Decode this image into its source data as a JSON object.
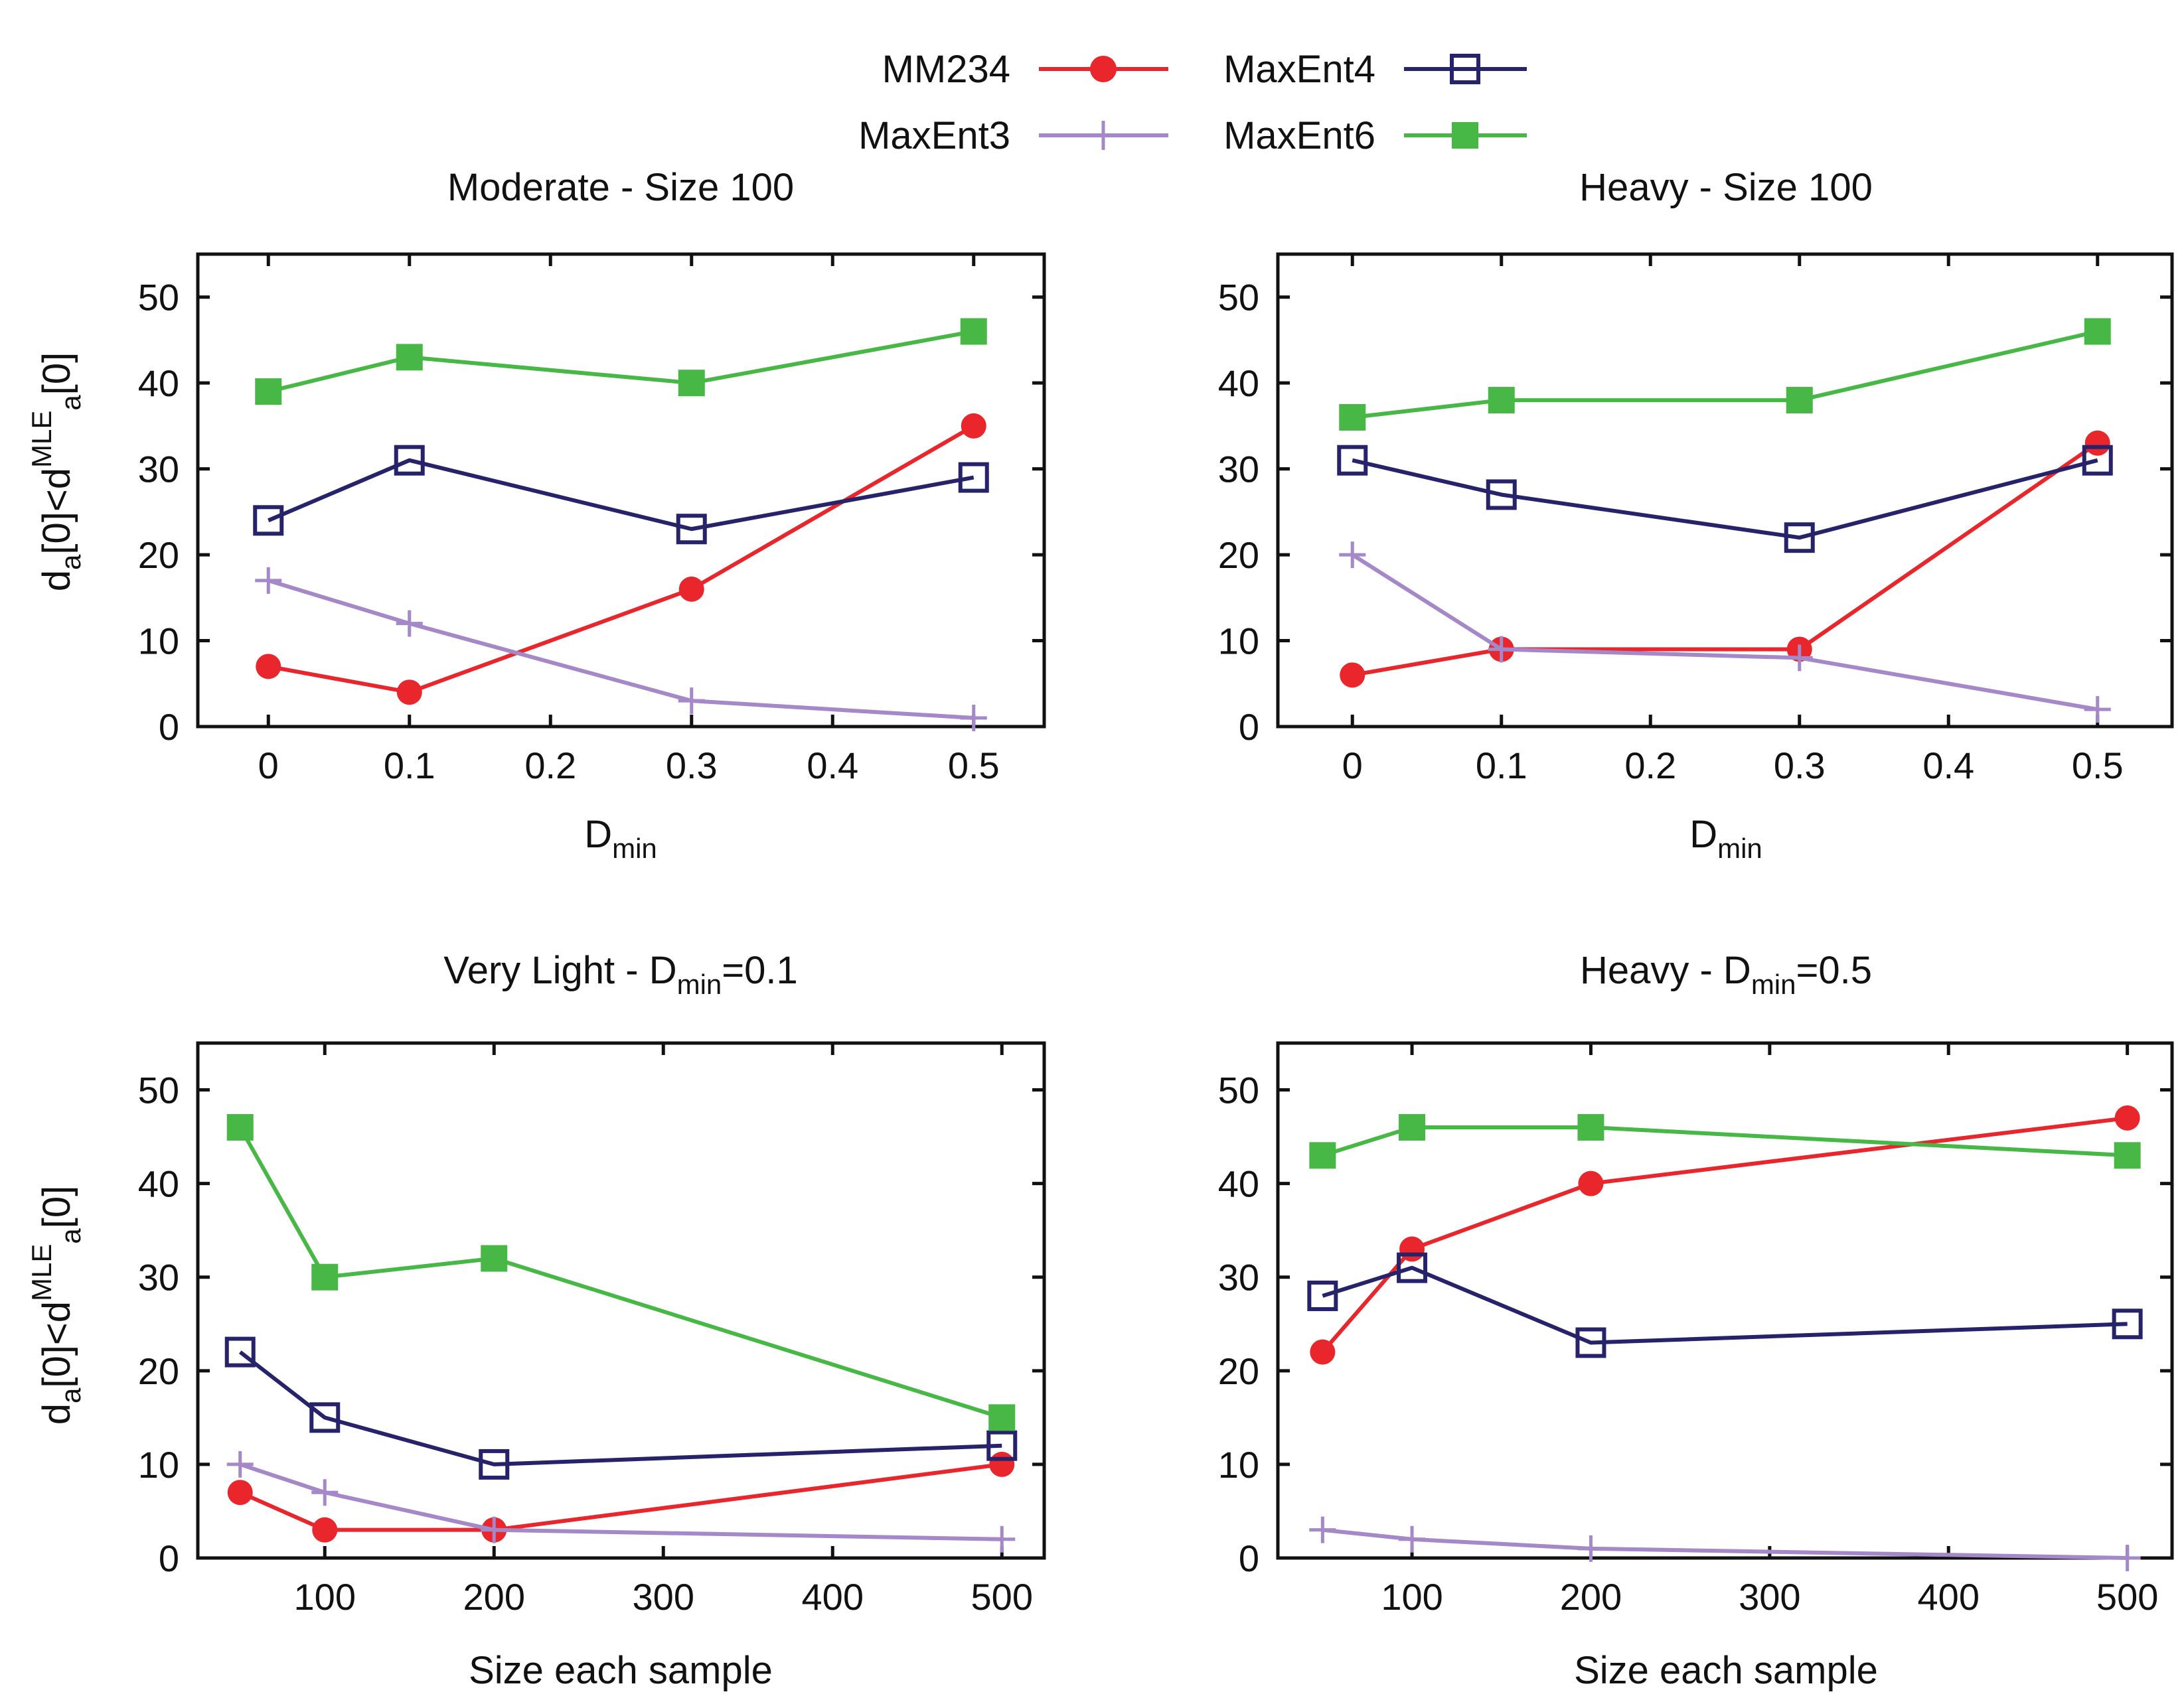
{
  "colors": {
    "MM234": "#e8262c",
    "MaxEnt3": "#a488c8",
    "MaxEnt4": "#26236b",
    "MaxEnt6": "#47b845"
  },
  "legend": {
    "entries": [
      {
        "label": "MM234",
        "marker": "filled-circle-icon"
      },
      {
        "label": "MaxEnt4",
        "marker": "open-square-icon"
      },
      {
        "label": "MaxEnt3",
        "marker": "plus-icon"
      },
      {
        "label": "MaxEnt6",
        "marker": "filled-square-icon"
      }
    ]
  },
  "chart_data": [
    {
      "type": "line",
      "title": "Moderate - Size 100",
      "title_main": "Moderate - Size 100",
      "xlabel": "Dmin",
      "xlabel_main": "D",
      "xlabel_sub": "min",
      "ylabel": "da[0]<dMLEa[0]",
      "ylabel_parts": {
        "a": "d",
        "b": "a",
        "c": "[0]<d",
        "d": "MLE",
        "e": "a",
        "f": "[0]"
      },
      "xlim": [
        -0.05,
        0.55
      ],
      "ylim": [
        0,
        55
      ],
      "xticks": [
        0,
        0.1,
        0.2,
        0.3,
        0.4,
        0.5
      ],
      "xtick_labels": [
        "0",
        "0.1",
        "0.2",
        "0.3",
        "0.4",
        "0.5"
      ],
      "yticks": [
        0,
        10,
        20,
        30,
        40,
        50
      ],
      "ytick_labels": [
        "0",
        "10",
        "20",
        "30",
        "40",
        "50"
      ],
      "x": [
        0,
        0.1,
        0.3,
        0.5
      ],
      "series": [
        {
          "name": "MM234",
          "values": [
            7,
            4,
            16,
            35
          ]
        },
        {
          "name": "MaxEnt3",
          "values": [
            17,
            12,
            3,
            1
          ]
        },
        {
          "name": "MaxEnt4",
          "values": [
            24,
            31,
            23,
            29
          ]
        },
        {
          "name": "MaxEnt6",
          "values": [
            39,
            43,
            40,
            46
          ]
        }
      ]
    },
    {
      "type": "line",
      "title": "Heavy - Size 100",
      "title_main": "Heavy - Size 100",
      "xlabel": "Dmin",
      "xlabel_main": "D",
      "xlabel_sub": "min",
      "ylabel": "",
      "xlim": [
        -0.05,
        0.55
      ],
      "ylim": [
        0,
        55
      ],
      "xticks": [
        0,
        0.1,
        0.2,
        0.3,
        0.4,
        0.5
      ],
      "xtick_labels": [
        "0",
        "0.1",
        "0.2",
        "0.3",
        "0.4",
        "0.5"
      ],
      "yticks": [
        0,
        10,
        20,
        30,
        40,
        50
      ],
      "ytick_labels": [
        "0",
        "10",
        "20",
        "30",
        "40",
        "50"
      ],
      "x": [
        0,
        0.1,
        0.3,
        0.5
      ],
      "series": [
        {
          "name": "MM234",
          "values": [
            6,
            9,
            9,
            33
          ]
        },
        {
          "name": "MaxEnt3",
          "values": [
            20,
            9,
            8,
            2
          ]
        },
        {
          "name": "MaxEnt4",
          "values": [
            31,
            27,
            22,
            31
          ]
        },
        {
          "name": "MaxEnt6",
          "values": [
            36,
            38,
            38,
            46
          ]
        }
      ]
    },
    {
      "type": "line",
      "title": "Very Light - Dmin=0.1",
      "title_main": "Very Light - D",
      "title_sub": "min",
      "title_tail": "=0.1",
      "xlabel": "Size each sample",
      "ylabel": "da[0]<dMLEa[0]",
      "ylabel_parts": {
        "a": "d",
        "b": "a",
        "c": "[0]<d",
        "d": "MLE",
        "e": "a",
        "f": "[0]"
      },
      "xlim": [
        25,
        525
      ],
      "ylim": [
        0,
        55
      ],
      "xticks": [
        100,
        200,
        300,
        400,
        500
      ],
      "xtick_labels": [
        "100",
        "200",
        "300",
        "400",
        "500"
      ],
      "yticks": [
        0,
        10,
        20,
        30,
        40,
        50
      ],
      "ytick_labels": [
        "0",
        "10",
        "20",
        "30",
        "40",
        "50"
      ],
      "x": [
        50,
        100,
        200,
        500
      ],
      "series": [
        {
          "name": "MM234",
          "values": [
            7,
            3,
            3,
            10
          ]
        },
        {
          "name": "MaxEnt3",
          "values": [
            10,
            7,
            3,
            2
          ]
        },
        {
          "name": "MaxEnt4",
          "values": [
            22,
            15,
            10,
            12
          ]
        },
        {
          "name": "MaxEnt6",
          "values": [
            46,
            30,
            32,
            15
          ]
        }
      ]
    },
    {
      "type": "line",
      "title": "Heavy - Dmin=0.5",
      "title_main": "Heavy - D",
      "title_sub": "min",
      "title_tail": "=0.5",
      "xlabel": "Size each sample",
      "ylabel": "",
      "xlim": [
        25,
        525
      ],
      "ylim": [
        0,
        55
      ],
      "xticks": [
        100,
        200,
        300,
        400,
        500
      ],
      "xtick_labels": [
        "100",
        "200",
        "300",
        "400",
        "500"
      ],
      "yticks": [
        0,
        10,
        20,
        30,
        40,
        50
      ],
      "ytick_labels": [
        "0",
        "10",
        "20",
        "30",
        "40",
        "50"
      ],
      "x": [
        50,
        100,
        200,
        500
      ],
      "series": [
        {
          "name": "MM234",
          "values": [
            22,
            33,
            40,
            47
          ]
        },
        {
          "name": "MaxEnt3",
          "values": [
            3,
            2,
            1,
            0
          ]
        },
        {
          "name": "MaxEnt4",
          "values": [
            28,
            31,
            23,
            25
          ]
        },
        {
          "name": "MaxEnt6",
          "values": [
            43,
            46,
            46,
            43
          ]
        }
      ]
    }
  ]
}
